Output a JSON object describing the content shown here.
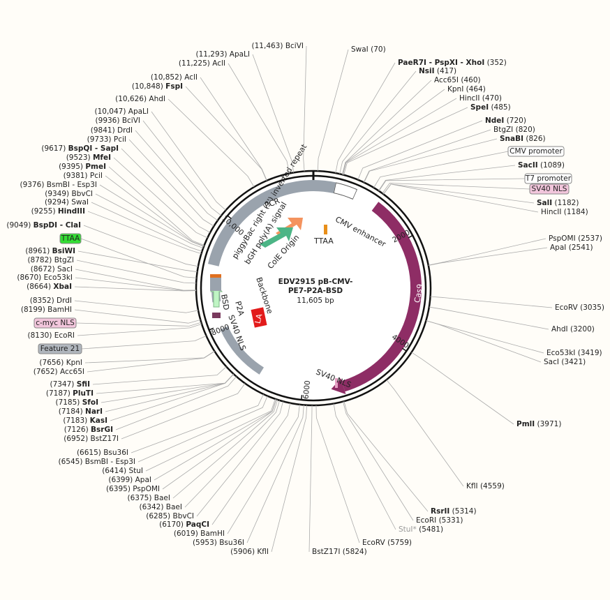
{
  "map": {
    "title_lines": [
      "EDV2915 pB-CMV-",
      "PE7-P2A-BSD"
    ],
    "size": "11,605  bp",
    "ruler": [
      "2000",
      "4000",
      "6000",
      "8000",
      "10,000"
    ],
    "features": [
      {
        "label": "PCR"
      },
      {
        "label": "CMV enhancer"
      },
      {
        "label": "Cas9"
      },
      {
        "label": "SV40 NLS"
      },
      {
        "label": "piggyBac right (3') inverted repeat"
      },
      {
        "label": "bGH poly(A) signal"
      },
      {
        "label": "ColE Origin"
      },
      {
        "label": "TTAA"
      },
      {
        "label": "Backbone"
      },
      {
        "label": "BSD"
      },
      {
        "label": "P2A"
      },
      {
        "label": "SV40 NLS"
      },
      {
        "label": "LA"
      }
    ],
    "feature_tags": [
      {
        "label": "TTAA",
        "color": "#33dd33"
      },
      {
        "label": "c-myc NLS",
        "color": "#f2c6dc"
      },
      {
        "label": "Feature 21",
        "color": "#b0b6bd"
      },
      {
        "label": "CMV promoter",
        "color": "#ffffff"
      },
      {
        "label": "T7 promoter",
        "color": "#ffffff"
      },
      {
        "label": "SV40 NLS",
        "color": "#f2c6dc"
      }
    ],
    "left_sites": [
      {
        "position": "(11,463)",
        "name": "BciVI",
        "bold": false
      },
      {
        "position": "(11,293)",
        "name": "ApaLI",
        "bold": false
      },
      {
        "position": "(11,225)",
        "name": "AclI",
        "bold": false
      },
      {
        "position": "(10,852)",
        "name": "AclI",
        "bold": false
      },
      {
        "position": "(10,848)",
        "name": "FspI",
        "bold": true
      },
      {
        "position": "(10,626)",
        "name": "AhdI",
        "bold": false
      },
      {
        "position": "(10,047)",
        "name": "ApaLI",
        "bold": false
      },
      {
        "position": "(9936)",
        "name": "BciVI",
        "bold": false
      },
      {
        "position": "(9841)",
        "name": "DrdI",
        "bold": false
      },
      {
        "position": "(9733)",
        "name": "PciI",
        "bold": false
      },
      {
        "position": "(9617)",
        "name": "BspQI - SapI",
        "bold": true
      },
      {
        "position": "(9523)",
        "name": "MfeI",
        "bold": true
      },
      {
        "position": "(9395)",
        "name": "PmeI",
        "bold": true
      },
      {
        "position": "(9381)",
        "name": "PciI",
        "bold": false
      },
      {
        "position": "(9376)",
        "name": "BsmBI - Esp3I",
        "bold": false
      },
      {
        "position": "(9349)",
        "name": "BbvCI",
        "bold": false
      },
      {
        "position": "(9294)",
        "name": "SwaI",
        "bold": false
      },
      {
        "position": "(9255)",
        "name": "HindIII",
        "bold": true
      },
      {
        "position": "(9049)",
        "name": "BspDI - ClaI",
        "bold": true
      },
      {
        "position": "(8961)",
        "name": "BsiWI",
        "bold": true
      },
      {
        "position": "(8782)",
        "name": "BtgZI",
        "bold": false
      },
      {
        "position": "(8672)",
        "name": "SacI",
        "bold": false
      },
      {
        "position": "(8670)",
        "name": "Eco53kI",
        "bold": false
      },
      {
        "position": "(8664)",
        "name": "XbaI",
        "bold": true
      },
      {
        "position": "(8352)",
        "name": "DrdI",
        "bold": false
      },
      {
        "position": "(8199)",
        "name": "BamHI",
        "bold": false
      },
      {
        "position": "(8130)",
        "name": "EcoRI",
        "bold": false
      },
      {
        "position": "(7656)",
        "name": "KpnI",
        "bold": false
      },
      {
        "position": "(7652)",
        "name": "Acc65I",
        "bold": false
      },
      {
        "position": "(7347)",
        "name": "SfiI",
        "bold": true
      },
      {
        "position": "(7187)",
        "name": "PluTI",
        "bold": true
      },
      {
        "position": "(7185)",
        "name": "SfoI",
        "bold": true
      },
      {
        "position": "(7184)",
        "name": "NarI",
        "bold": true
      },
      {
        "position": "(7183)",
        "name": "KasI",
        "bold": true
      },
      {
        "position": "(7126)",
        "name": "BsrGI",
        "bold": true
      },
      {
        "position": "(6952)",
        "name": "BstZ17I",
        "bold": false
      },
      {
        "position": "(6615)",
        "name": "Bsu36I",
        "bold": false
      },
      {
        "position": "(6545)",
        "name": "BsmBI - Esp3I",
        "bold": false
      },
      {
        "position": "(6414)",
        "name": "StuI",
        "bold": false
      },
      {
        "position": "(6399)",
        "name": "ApaI",
        "bold": false
      },
      {
        "position": "(6395)",
        "name": "PspOMI",
        "bold": false
      },
      {
        "position": "(6375)",
        "name": "BaeI",
        "bold": false
      },
      {
        "position": "(6342)",
        "name": "BaeI",
        "bold": false
      },
      {
        "position": "(6285)",
        "name": "BbvCI",
        "bold": false
      },
      {
        "position": "(6170)",
        "name": "PaqCI",
        "bold": true
      },
      {
        "position": "(6019)",
        "name": "BamHI",
        "bold": false
      },
      {
        "position": "(5953)",
        "name": "Bsu36I",
        "bold": false
      },
      {
        "position": "(5906)",
        "name": "KflI",
        "bold": false
      }
    ],
    "right_sites": [
      {
        "name": "SwaI",
        "position": "(70)",
        "bold": false
      },
      {
        "name": "PaeR7I - PspXI - XhoI",
        "position": "(352)",
        "bold": true
      },
      {
        "name": "NsiI",
        "position": "(417)",
        "bold": true
      },
      {
        "name": "Acc65I",
        "position": "(460)",
        "bold": false
      },
      {
        "name": "KpnI",
        "position": "(464)",
        "bold": false
      },
      {
        "name": "HincII",
        "position": "(470)",
        "bold": false
      },
      {
        "name": "SpeI",
        "position": "(485)",
        "bold": true
      },
      {
        "name": "NdeI",
        "position": "(720)",
        "bold": true
      },
      {
        "name": "BtgZI",
        "position": "(820)",
        "bold": false
      },
      {
        "name": "SnaBI",
        "position": "(826)",
        "bold": true
      },
      {
        "name": "SacII",
        "position": "(1089)",
        "bold": true
      },
      {
        "name": "SalI",
        "position": "(1182)",
        "bold": true
      },
      {
        "name": "HincII",
        "position": "(1184)",
        "bold": false
      },
      {
        "name": "PspOMI",
        "position": "(2537)",
        "bold": false
      },
      {
        "name": "ApaI",
        "position": "(2541)",
        "bold": false
      },
      {
        "name": "EcoRV",
        "position": "(3035)",
        "bold": false
      },
      {
        "name": "AhdI",
        "position": "(3200)",
        "bold": false
      },
      {
        "name": "Eco53kI",
        "position": "(3419)",
        "bold": false
      },
      {
        "name": "SacI",
        "position": "(3421)",
        "bold": false
      },
      {
        "name": "PmlI",
        "position": "(3971)",
        "bold": true
      },
      {
        "name": "KflI",
        "position": "(4559)",
        "bold": false
      },
      {
        "name": "RsrII",
        "position": "(5314)",
        "bold": true
      },
      {
        "name": "EcoRI",
        "position": "(5331)",
        "bold": false
      },
      {
        "name": "StuI*",
        "position": "(5481)",
        "bold": false,
        "color": "#999999"
      },
      {
        "name": "EcoRV",
        "position": "(5759)",
        "bold": false
      },
      {
        "name": "BstZ17I",
        "position": "(5824)",
        "bold": false
      }
    ]
  }
}
